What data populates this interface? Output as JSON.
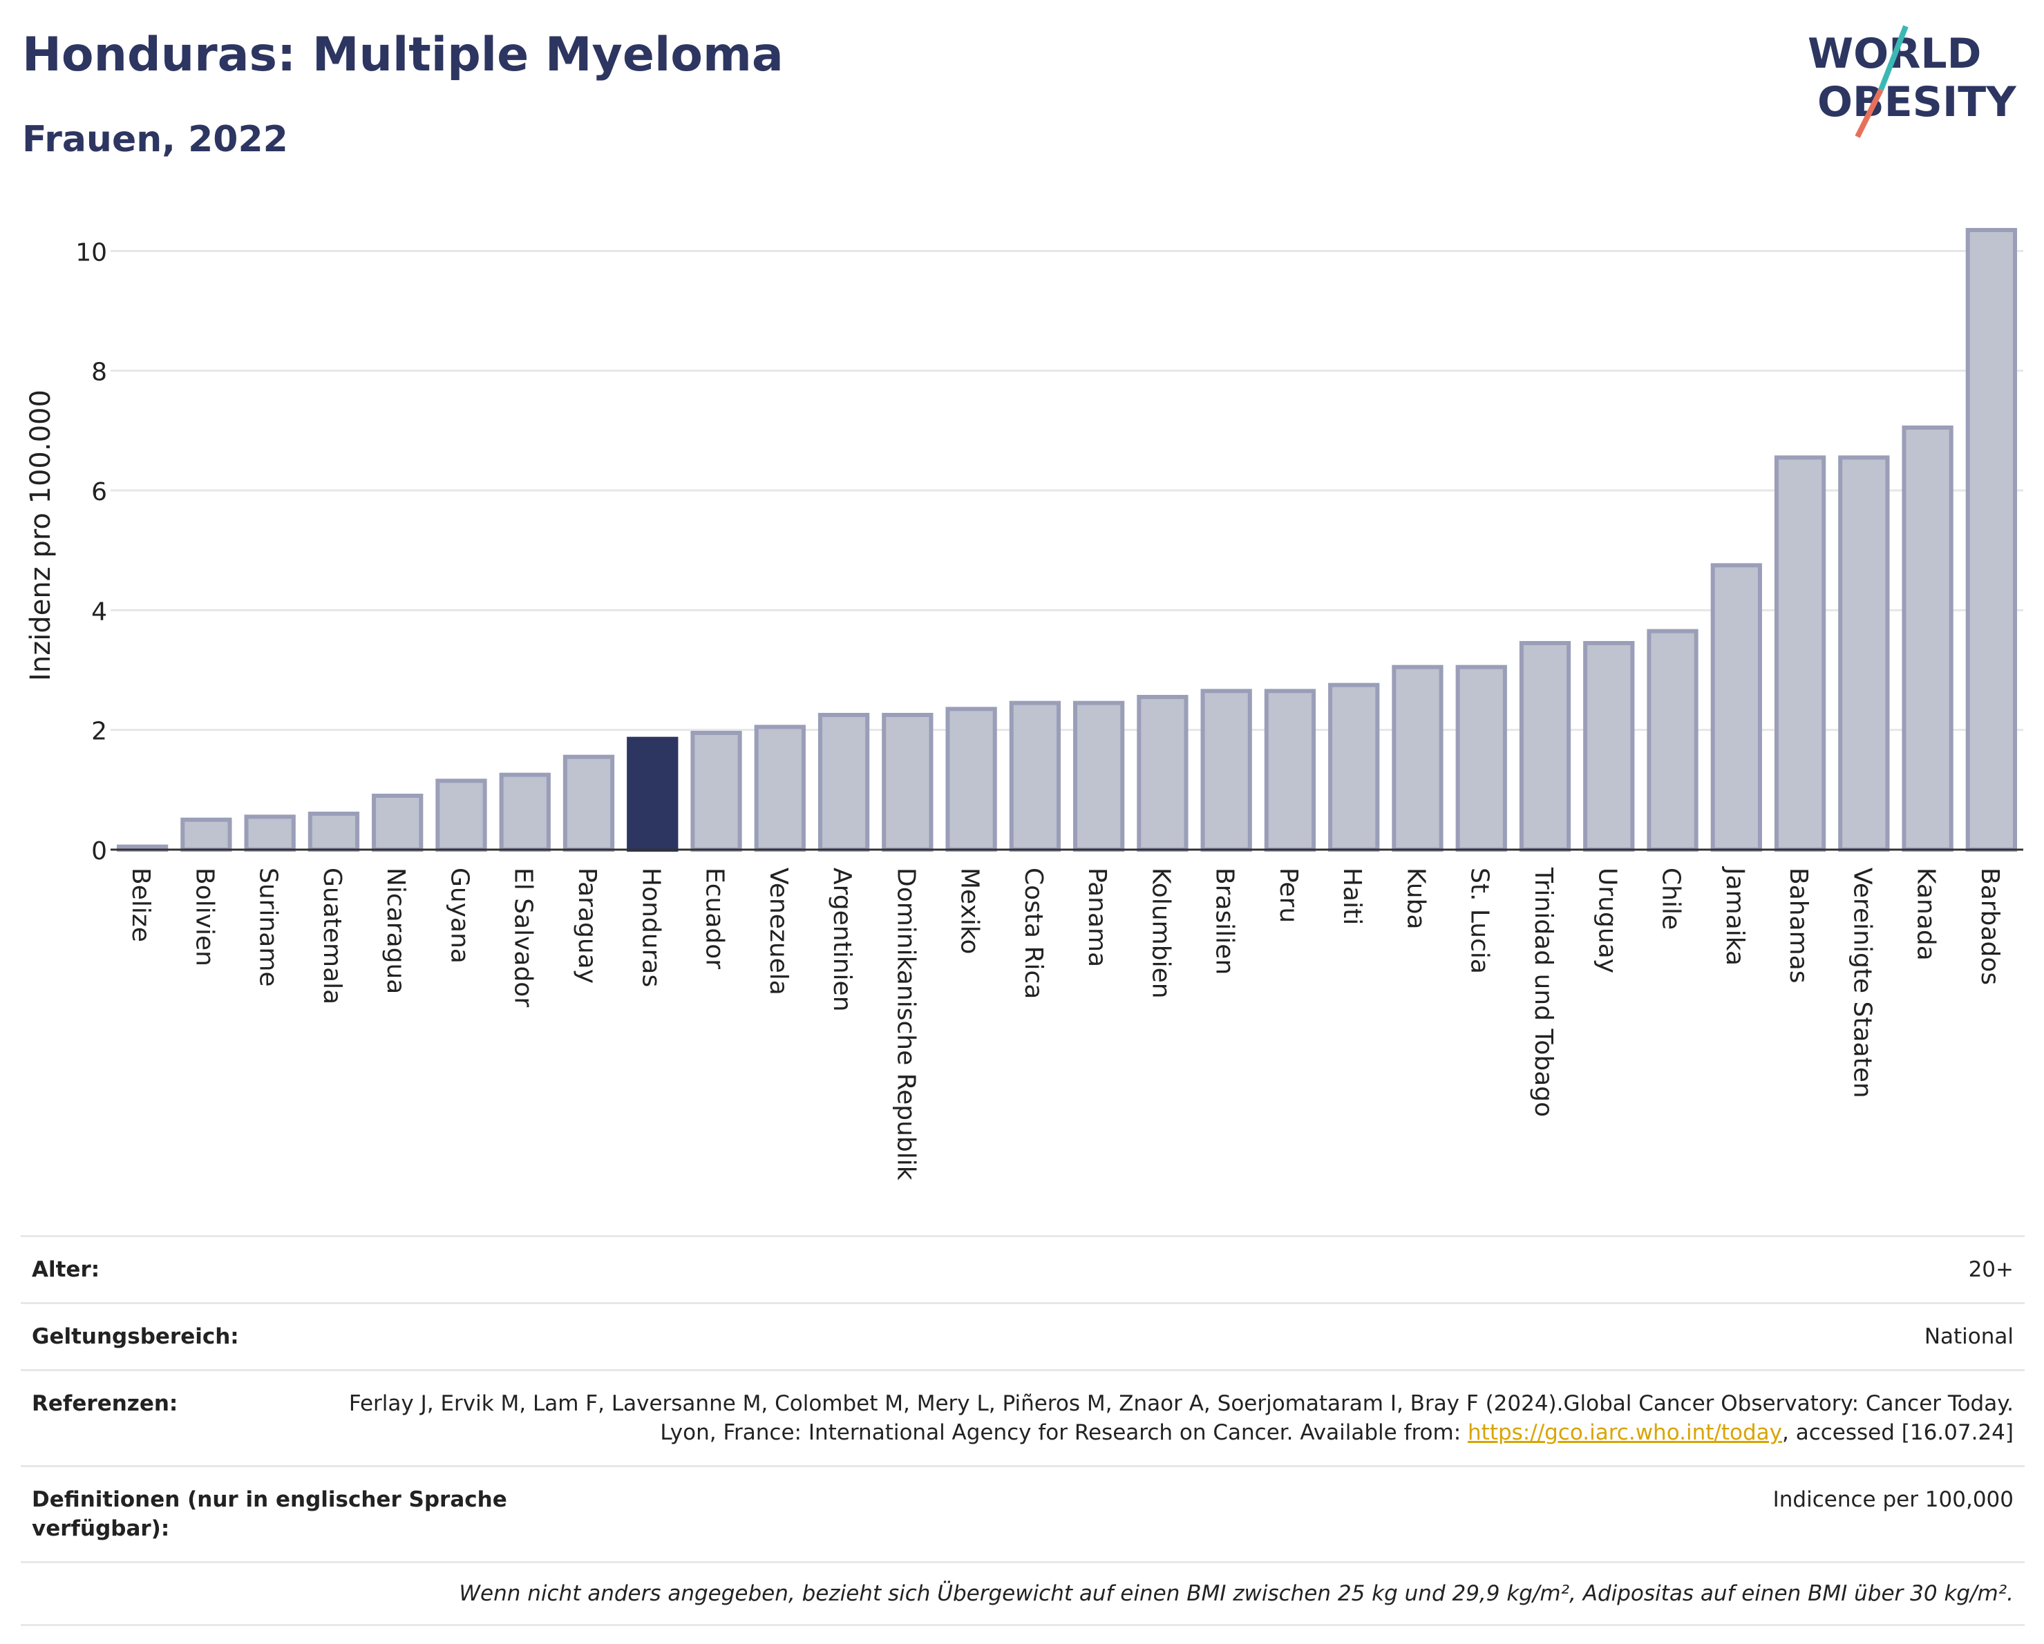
{
  "header": {
    "title": "Honduras: Multiple Myeloma",
    "subtitle": "Frauen, 2022"
  },
  "logo": {
    "line1": "WORLD",
    "line2": "OBESITY"
  },
  "chart_data": {
    "type": "bar",
    "ylabel": "Inzidenz pro 100.000",
    "xlabel": "",
    "ylim": [
      0,
      10.5
    ],
    "yticks": [
      0,
      2,
      4,
      6,
      8,
      10
    ],
    "grid": true,
    "highlight": "Honduras",
    "colors": {
      "bar": "#bfc2cf",
      "bar_edge": "#9a9eb8",
      "highlight": "#2d3561"
    },
    "categories": [
      "Belize",
      "Bolivien",
      "Suriname",
      "Guatemala",
      "Nicaragua",
      "Guyana",
      "El Salvador",
      "Paraguay",
      "Honduras",
      "Ecuador",
      "Venezuela",
      "Argentinien",
      "Dominikanische Republik",
      "Mexiko",
      "Costa Rica",
      "Panama",
      "Kolumbien",
      "Brasilien",
      "Peru",
      "Haiti",
      "Kuba",
      "St. Lucia",
      "Trinidad und Tobago",
      "Uruguay",
      "Chile",
      "Jamaika",
      "Bahamas",
      "Vereinigte Staaten",
      "Kanada",
      "Barbados"
    ],
    "values": [
      0.05,
      0.5,
      0.55,
      0.6,
      0.9,
      1.15,
      1.25,
      1.55,
      1.85,
      1.95,
      2.05,
      2.25,
      2.25,
      2.35,
      2.45,
      2.45,
      2.55,
      2.65,
      2.65,
      2.75,
      3.05,
      3.05,
      3.45,
      3.45,
      3.65,
      4.75,
      6.55,
      6.55,
      7.05,
      10.35
    ]
  },
  "info": {
    "age_label": "Alter:",
    "age_value": "20+",
    "scope_label": "Geltungsbereich:",
    "scope_value": "National",
    "refs_label": "Referenzen:",
    "refs_text_1": "Ferlay J, Ervik M, Lam F, Laversanne M, Colombet M, Mery L, Piñeros M, Znaor A, Soerjomataram I, Bray F (2024).Global Cancer Observatory: Cancer Today. Lyon, France: International Agency for Research on Cancer. Available from: ",
    "refs_link": "https://gco.iarc.who.int/today",
    "refs_text_2": ", accessed [16.07.24]",
    "defs_label": "Definitionen (nur in englischer Sprache verfügbar):",
    "defs_value": "Indicence per 100,000",
    "note": "Wenn nicht anders angegeben, bezieht sich Übergewicht auf einen BMI zwischen 25 kg und 29,9 kg/m², Adipositas auf einen BMI über 30 kg/m²."
  }
}
